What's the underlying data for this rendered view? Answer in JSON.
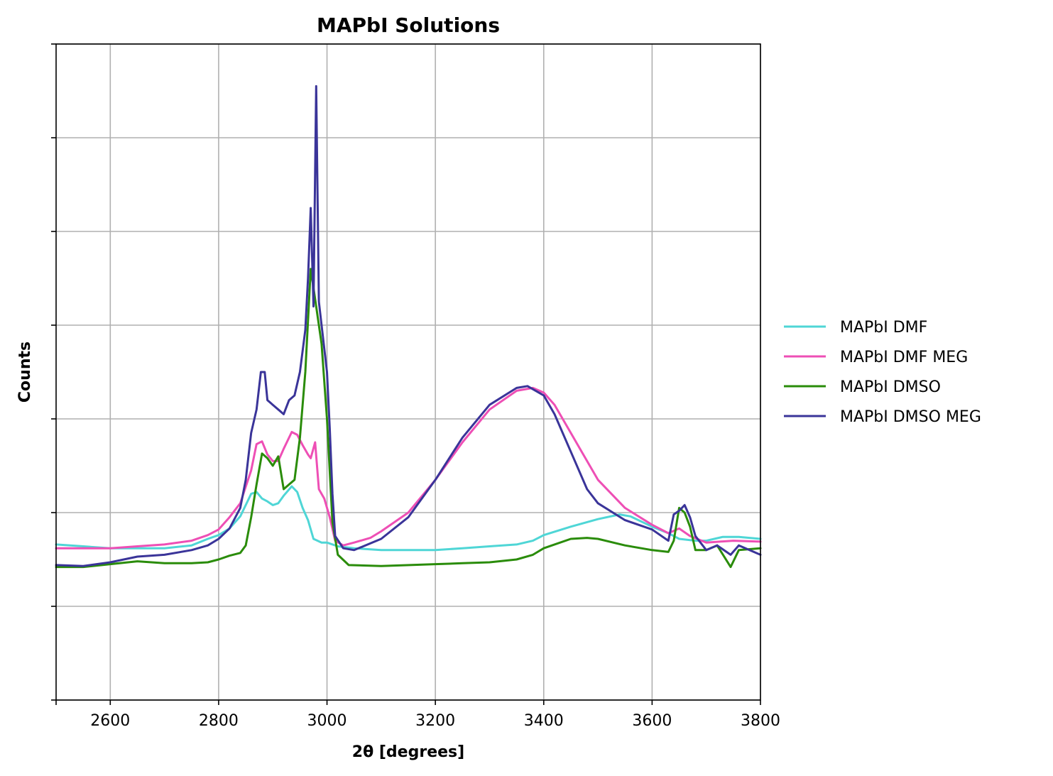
{
  "chart_data": {
    "type": "line",
    "title": "MAPbI Solutions",
    "xlabel": "2θ [degrees]",
    "ylabel": "Counts",
    "xlim": [
      2500,
      3800
    ],
    "ylim": [
      0,
      7
    ],
    "x_ticks": [
      2600,
      2800,
      3000,
      3200,
      3400,
      3600,
      3800
    ],
    "x_tick_labels": [
      "2600",
      "2800",
      "3000",
      "3200",
      "3400",
      "3600",
      "3800"
    ],
    "y_ticks": [
      0,
      1,
      2,
      3,
      4,
      5,
      6,
      7
    ],
    "y_tick_labels_shown": false,
    "grid": true,
    "legend_position": "right-outside",
    "series": [
      {
        "name": "MAPbI DMF",
        "color": "#4fd6d6",
        "points": [
          [
            2500,
            1.66
          ],
          [
            2550,
            1.64
          ],
          [
            2600,
            1.62
          ],
          [
            2650,
            1.62
          ],
          [
            2700,
            1.62
          ],
          [
            2750,
            1.65
          ],
          [
            2780,
            1.72
          ],
          [
            2800,
            1.76
          ],
          [
            2820,
            1.83
          ],
          [
            2840,
            1.96
          ],
          [
            2860,
            2.2
          ],
          [
            2870,
            2.22
          ],
          [
            2880,
            2.15
          ],
          [
            2890,
            2.12
          ],
          [
            2900,
            2.08
          ],
          [
            2910,
            2.1
          ],
          [
            2920,
            2.18
          ],
          [
            2935,
            2.28
          ],
          [
            2945,
            2.22
          ],
          [
            2955,
            2.05
          ],
          [
            2965,
            1.92
          ],
          [
            2975,
            1.72
          ],
          [
            2990,
            1.68
          ],
          [
            3000,
            1.68
          ],
          [
            3020,
            1.64
          ],
          [
            3050,
            1.62
          ],
          [
            3100,
            1.6
          ],
          [
            3150,
            1.6
          ],
          [
            3200,
            1.6
          ],
          [
            3250,
            1.62
          ],
          [
            3300,
            1.64
          ],
          [
            3350,
            1.66
          ],
          [
            3380,
            1.7
          ],
          [
            3400,
            1.76
          ],
          [
            3450,
            1.85
          ],
          [
            3500,
            1.93
          ],
          [
            3540,
            1.98
          ],
          [
            3560,
            1.96
          ],
          [
            3600,
            1.85
          ],
          [
            3630,
            1.78
          ],
          [
            3650,
            1.72
          ],
          [
            3680,
            1.7
          ],
          [
            3700,
            1.7
          ],
          [
            3730,
            1.74
          ],
          [
            3760,
            1.74
          ],
          [
            3800,
            1.72
          ]
        ]
      },
      {
        "name": "MAPbI DMF MEG",
        "color": "#ee4fb5",
        "points": [
          [
            2500,
            1.62
          ],
          [
            2550,
            1.62
          ],
          [
            2600,
            1.62
          ],
          [
            2650,
            1.64
          ],
          [
            2700,
            1.66
          ],
          [
            2750,
            1.7
          ],
          [
            2780,
            1.76
          ],
          [
            2800,
            1.82
          ],
          [
            2820,
            1.95
          ],
          [
            2840,
            2.1
          ],
          [
            2860,
            2.45
          ],
          [
            2870,
            2.73
          ],
          [
            2880,
            2.76
          ],
          [
            2890,
            2.62
          ],
          [
            2900,
            2.55
          ],
          [
            2910,
            2.55
          ],
          [
            2920,
            2.68
          ],
          [
            2935,
            2.86
          ],
          [
            2945,
            2.83
          ],
          [
            2955,
            2.72
          ],
          [
            2965,
            2.62
          ],
          [
            2970,
            2.58
          ],
          [
            2978,
            2.75
          ],
          [
            2985,
            2.25
          ],
          [
            2995,
            2.15
          ],
          [
            3005,
            1.95
          ],
          [
            3015,
            1.7
          ],
          [
            3030,
            1.65
          ],
          [
            3050,
            1.68
          ],
          [
            3080,
            1.73
          ],
          [
            3100,
            1.8
          ],
          [
            3150,
            2.0
          ],
          [
            3200,
            2.35
          ],
          [
            3250,
            2.75
          ],
          [
            3300,
            3.1
          ],
          [
            3350,
            3.3
          ],
          [
            3380,
            3.33
          ],
          [
            3400,
            3.28
          ],
          [
            3420,
            3.15
          ],
          [
            3450,
            2.85
          ],
          [
            3500,
            2.35
          ],
          [
            3550,
            2.05
          ],
          [
            3600,
            1.87
          ],
          [
            3630,
            1.78
          ],
          [
            3650,
            1.83
          ],
          [
            3670,
            1.75
          ],
          [
            3700,
            1.68
          ],
          [
            3750,
            1.7
          ],
          [
            3800,
            1.69
          ]
        ]
      },
      {
        "name": "MAPbI DMSO",
        "color": "#2a8c0a",
        "points": [
          [
            2500,
            1.42
          ],
          [
            2550,
            1.42
          ],
          [
            2600,
            1.45
          ],
          [
            2650,
            1.48
          ],
          [
            2700,
            1.46
          ],
          [
            2750,
            1.46
          ],
          [
            2780,
            1.47
          ],
          [
            2800,
            1.5
          ],
          [
            2820,
            1.54
          ],
          [
            2840,
            1.57
          ],
          [
            2850,
            1.65
          ],
          [
            2860,
            1.95
          ],
          [
            2870,
            2.3
          ],
          [
            2880,
            2.63
          ],
          [
            2890,
            2.58
          ],
          [
            2900,
            2.5
          ],
          [
            2910,
            2.6
          ],
          [
            2920,
            2.25
          ],
          [
            2930,
            2.3
          ],
          [
            2940,
            2.35
          ],
          [
            2950,
            2.8
          ],
          [
            2960,
            3.5
          ],
          [
            2970,
            4.6
          ],
          [
            2980,
            4.2
          ],
          [
            2990,
            3.8
          ],
          [
            3000,
            3.0
          ],
          [
            3010,
            1.9
          ],
          [
            3020,
            1.55
          ],
          [
            3040,
            1.44
          ],
          [
            3100,
            1.43
          ],
          [
            3200,
            1.45
          ],
          [
            3250,
            1.46
          ],
          [
            3300,
            1.47
          ],
          [
            3350,
            1.5
          ],
          [
            3380,
            1.55
          ],
          [
            3400,
            1.62
          ],
          [
            3450,
            1.72
          ],
          [
            3480,
            1.73
          ],
          [
            3500,
            1.72
          ],
          [
            3550,
            1.65
          ],
          [
            3600,
            1.6
          ],
          [
            3630,
            1.58
          ],
          [
            3640,
            1.7
          ],
          [
            3650,
            2.05
          ],
          [
            3660,
            2.0
          ],
          [
            3670,
            1.85
          ],
          [
            3680,
            1.6
          ],
          [
            3700,
            1.6
          ],
          [
            3720,
            1.65
          ],
          [
            3745,
            1.42
          ],
          [
            3760,
            1.6
          ],
          [
            3800,
            1.62
          ]
        ]
      },
      {
        "name": "MAPbI DMSO MEG",
        "color": "#3a3499",
        "points": [
          [
            2500,
            1.44
          ],
          [
            2550,
            1.43
          ],
          [
            2600,
            1.47
          ],
          [
            2650,
            1.53
          ],
          [
            2700,
            1.55
          ],
          [
            2750,
            1.6
          ],
          [
            2780,
            1.65
          ],
          [
            2800,
            1.72
          ],
          [
            2820,
            1.83
          ],
          [
            2840,
            2.05
          ],
          [
            2850,
            2.35
          ],
          [
            2860,
            2.85
          ],
          [
            2870,
            3.1
          ],
          [
            2878,
            3.5
          ],
          [
            2885,
            3.5
          ],
          [
            2890,
            3.2
          ],
          [
            2900,
            3.15
          ],
          [
            2910,
            3.1
          ],
          [
            2920,
            3.05
          ],
          [
            2930,
            3.2
          ],
          [
            2940,
            3.25
          ],
          [
            2950,
            3.5
          ],
          [
            2960,
            3.95
          ],
          [
            2965,
            4.5
          ],
          [
            2970,
            5.25
          ],
          [
            2975,
            4.2
          ],
          [
            2980,
            6.55
          ],
          [
            2985,
            4.25
          ],
          [
            2990,
            4.0
          ],
          [
            3000,
            3.5
          ],
          [
            3005,
            2.9
          ],
          [
            3010,
            2.2
          ],
          [
            3015,
            1.75
          ],
          [
            3030,
            1.62
          ],
          [
            3050,
            1.6
          ],
          [
            3100,
            1.72
          ],
          [
            3150,
            1.95
          ],
          [
            3200,
            2.35
          ],
          [
            3250,
            2.8
          ],
          [
            3300,
            3.15
          ],
          [
            3350,
            3.33
          ],
          [
            3370,
            3.35
          ],
          [
            3400,
            3.25
          ],
          [
            3420,
            3.05
          ],
          [
            3450,
            2.65
          ],
          [
            3480,
            2.25
          ],
          [
            3500,
            2.1
          ],
          [
            3550,
            1.92
          ],
          [
            3600,
            1.82
          ],
          [
            3630,
            1.7
          ],
          [
            3640,
            1.98
          ],
          [
            3650,
            2.02
          ],
          [
            3660,
            2.08
          ],
          [
            3670,
            1.95
          ],
          [
            3680,
            1.75
          ],
          [
            3700,
            1.6
          ],
          [
            3720,
            1.65
          ],
          [
            3745,
            1.55
          ],
          [
            3760,
            1.65
          ],
          [
            3800,
            1.55
          ]
        ]
      }
    ]
  }
}
